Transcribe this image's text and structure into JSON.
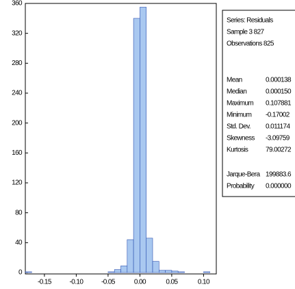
{
  "chart_data": {
    "type": "histogram",
    "bins": [
      -0.18,
      -0.17,
      -0.16,
      -0.15,
      -0.14,
      -0.13,
      -0.12,
      -0.11,
      -0.1,
      -0.09,
      -0.08,
      -0.07,
      -0.06,
      -0.05,
      -0.04,
      -0.03,
      -0.02,
      -0.01,
      0,
      0.01,
      0.02,
      0.03,
      0.04,
      0.05,
      0.06,
      0.07,
      0.08,
      0.09,
      0.1,
      0.11
    ],
    "values": [
      1,
      0,
      0,
      0,
      0,
      0,
      0,
      0,
      0,
      0,
      0,
      0,
      0,
      1,
      4,
      9,
      44,
      340,
      355,
      46,
      15,
      3,
      3,
      2,
      1,
      0,
      0,
      0,
      1
    ],
    "color": "#a9c8f0",
    "xlim": [
      -0.18,
      0.12
    ],
    "xticks": [
      {
        "value": -0.15,
        "label": "-0.15"
      },
      {
        "value": -0.1,
        "label": "-0.10"
      },
      {
        "value": -0.05,
        "label": "-0.05"
      },
      {
        "value": 0,
        "label": "0.00"
      },
      {
        "value": 0.05,
        "label": "0.05"
      },
      {
        "value": 0.1,
        "label": "0.10"
      }
    ],
    "ylim": [
      0,
      360
    ],
    "yticks": [
      0,
      40,
      80,
      120,
      160,
      200,
      240,
      280,
      320,
      360
    ]
  },
  "stats_panel": {
    "header": [
      "Series: Residuals",
      "Sample 3 827",
      "Observations 825"
    ],
    "rows": [
      [
        "Mean",
        "0.000138"
      ],
      [
        "Median",
        "0.000150"
      ],
      [
        "Maximum",
        "0.107881"
      ],
      [
        "Minimum",
        "-0.17002"
      ],
      [
        "Std. Dev.",
        "0.011174"
      ],
      [
        "Skewness",
        "-3.09759"
      ],
      [
        "Kurtosis",
        "79.00272"
      ]
    ],
    "tests": [
      [
        "Jarque-Bera",
        "199883.6"
      ],
      [
        "Probability",
        "0.000000"
      ]
    ]
  }
}
